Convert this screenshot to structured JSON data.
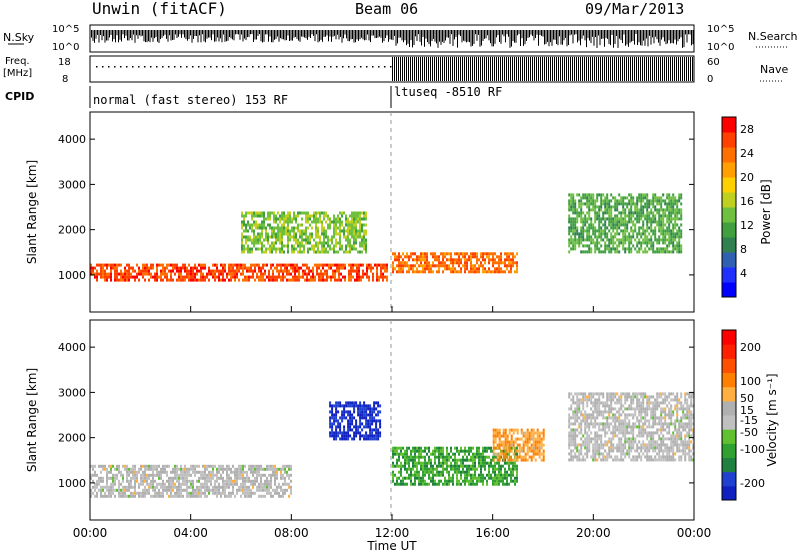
{
  "header": {
    "station": "Unwin (fitACF)",
    "beam": "Beam 06",
    "date": "09/Mar/2013"
  },
  "side_labels": {
    "nsky": "N.Sky",
    "freq_line1": "Freq.",
    "freq_line2": "[MHz]",
    "cpid": "CPID",
    "nsearch": "N.Search",
    "nave": "Nave"
  },
  "axis_ticks": {
    "noise_top": "10^5",
    "noise_bottom": "10^0",
    "freq_top": "18",
    "freq_bottom": "8",
    "nave_top": "60",
    "nave_bottom": "0"
  },
  "cpid_modes": [
    {
      "label": "normal (fast stereo) 153 RF",
      "start_hour": 0
    },
    {
      "label": "ltuseq -8510 RF",
      "start_hour": 12
    }
  ],
  "colors": {
    "power_scale": [
      "#0000ff",
      "#2030ff",
      "#3060b0",
      "#308050",
      "#40a040",
      "#70c040",
      "#c0d020",
      "#ffd000",
      "#ffa000",
      "#ff7000",
      "#ff4000",
      "#ff0000"
    ],
    "velocity_scale": [
      "#1020c0",
      "#2040d0",
      "#208040",
      "#30a030",
      "#60c030",
      "#c0c0c0",
      "#b0b0b0",
      "#ffb040",
      "#ff8000",
      "#ff5000",
      "#ff2000",
      "#ff0000"
    ]
  },
  "chart_data": [
    {
      "type": "heatmap",
      "name": "power",
      "xlabel": "Time UT",
      "ylabel": "Slant Range [km]",
      "x_ticks": [
        "00:00",
        "04:00",
        "08:00",
        "12:00",
        "16:00",
        "20:00",
        "00:00"
      ],
      "xlim_hours": [
        0,
        24
      ],
      "y_ticks": [
        1000,
        2000,
        3000,
        4000
      ],
      "ylim": [
        180,
        4600
      ],
      "colorbar_label": "Power [dB]",
      "colorbar_ticks": [
        4,
        8,
        12,
        16,
        20,
        24,
        28
      ],
      "colorbar_range": [
        0,
        30
      ],
      "features": [
        {
          "t_start": 0.0,
          "t_end": 11.8,
          "range_start": 900,
          "range_end": 1250,
          "value": 26
        },
        {
          "t_start": 6.0,
          "t_end": 11.0,
          "range_start": 1500,
          "range_end": 2400,
          "value": 14
        },
        {
          "t_start": 12.0,
          "t_end": 17.0,
          "range_start": 1050,
          "range_end": 1500,
          "value": 24
        },
        {
          "t_start": 19.0,
          "t_end": 23.5,
          "range_start": 1500,
          "range_end": 2800,
          "value": 12
        }
      ]
    },
    {
      "type": "heatmap",
      "name": "velocity",
      "xlabel": "Time UT",
      "ylabel": "Slant Range [km]",
      "x_ticks": [
        "00:00",
        "04:00",
        "08:00",
        "12:00",
        "16:00",
        "20:00",
        "00:00"
      ],
      "xlim_hours": [
        0,
        24
      ],
      "y_ticks": [
        1000,
        2000,
        3000,
        4000
      ],
      "ylim": [
        180,
        4600
      ],
      "colorbar_label": "Velocity [m s⁻¹]",
      "colorbar_ticks": [
        200,
        100,
        50,
        15,
        -15,
        -50,
        -100,
        -200
      ],
      "colorbar_range": [
        -250,
        250
      ],
      "features": [
        {
          "t_start": 0.0,
          "t_end": 8.0,
          "range_start": 700,
          "range_end": 1400,
          "value": 0
        },
        {
          "t_start": 9.5,
          "t_end": 11.5,
          "range_start": 2000,
          "range_end": 2800,
          "value": -220
        },
        {
          "t_start": 12.0,
          "t_end": 17.0,
          "range_start": 1000,
          "range_end": 1800,
          "value": -100
        },
        {
          "t_start": 16.0,
          "t_end": 18.0,
          "range_start": 1500,
          "range_end": 2200,
          "value": 80
        },
        {
          "t_start": 19.0,
          "t_end": 24.0,
          "range_start": 1500,
          "range_end": 3000,
          "value": 0
        }
      ]
    }
  ]
}
